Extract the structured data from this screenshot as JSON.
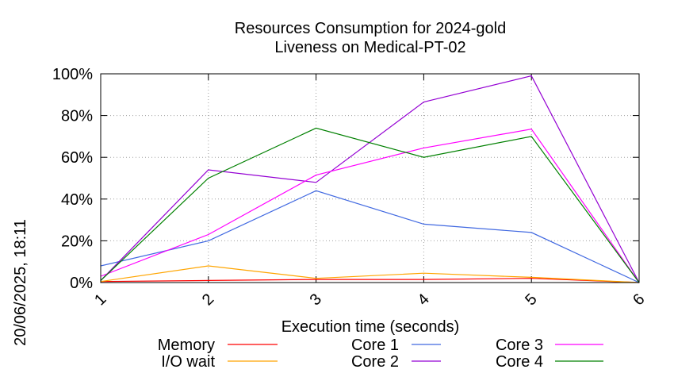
{
  "chart_data": {
    "type": "line",
    "title": "Resources Consumption for 2024-gold",
    "subtitle": "Liveness on Medical-PT-02",
    "xlabel": "Execution time (seconds)",
    "ylabel": "",
    "side_label": "20/06/2025, 18:11",
    "x": [
      1,
      2,
      3,
      4,
      5,
      6
    ],
    "xlim": [
      1,
      6
    ],
    "ylim": [
      0,
      100
    ],
    "y_ticks": [
      0,
      20,
      40,
      60,
      80,
      100
    ],
    "y_tick_labels": [
      "0%",
      "20%",
      "40%",
      "60%",
      "80%",
      "100%"
    ],
    "x_tick_labels": [
      "1",
      "2",
      "3",
      "4",
      "5",
      "6"
    ],
    "grid": true,
    "legend_position": "bottom",
    "series": [
      {
        "name": "Memory",
        "color": "#ff0000",
        "values": [
          0.5,
          1,
          1.5,
          1.5,
          2,
          0
        ]
      },
      {
        "name": "I/O wait",
        "color": "#ffa500",
        "values": [
          0.5,
          8,
          2,
          4.5,
          2.5,
          0
        ]
      },
      {
        "name": "Core 1",
        "color": "#4169e1",
        "values": [
          8,
          20,
          44,
          28,
          24,
          0
        ]
      },
      {
        "name": "Core 2",
        "color": "#9400d3",
        "values": [
          1,
          54,
          48,
          86.5,
          99,
          0
        ]
      },
      {
        "name": "Core 3",
        "color": "#ff00ff",
        "values": [
          3,
          23,
          51.5,
          64.5,
          73.5,
          0
        ]
      },
      {
        "name": "Core 4",
        "color": "#008000",
        "values": [
          1,
          50,
          74,
          60,
          70,
          0
        ]
      }
    ]
  }
}
